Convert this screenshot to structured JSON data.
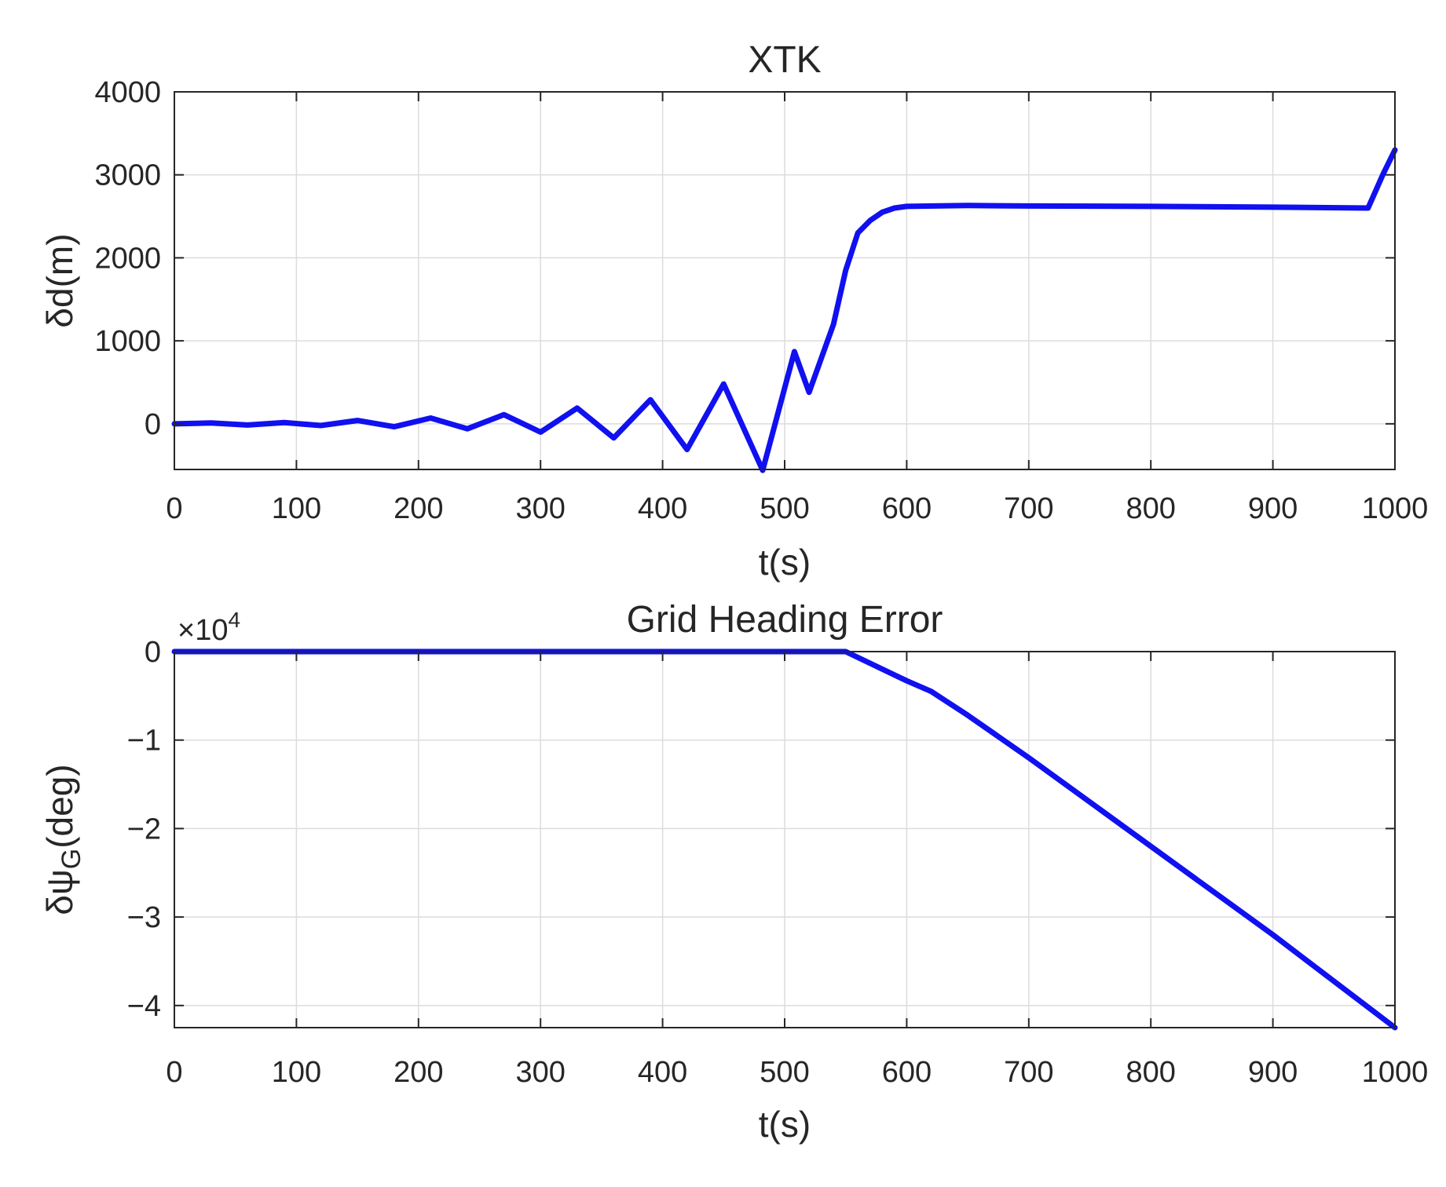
{
  "chart_data": [
    {
      "type": "line",
      "title": "XTK",
      "xlabel": "t(s)",
      "ylabel": "δd(m)",
      "xlim": [
        0,
        1000
      ],
      "ylim": [
        -550,
        4000
      ],
      "xticks": [
        0,
        100,
        200,
        300,
        400,
        500,
        600,
        700,
        800,
        900,
        1000
      ],
      "xtick_labels": [
        "0",
        "100",
        "200",
        "300",
        "400",
        "500",
        "600",
        "700",
        "800",
        "900",
        "1000"
      ],
      "yticks": [
        0,
        1000,
        2000,
        3000,
        4000
      ],
      "ytick_labels": [
        "0",
        "1000",
        "2000",
        "3000",
        "4000"
      ],
      "grid": true,
      "color": "#1010f0",
      "series": [
        {
          "x": [
            0,
            30,
            60,
            90,
            120,
            150,
            180,
            210,
            240,
            270,
            300,
            330,
            360,
            390,
            420,
            450,
            482,
            508,
            520,
            540,
            550,
            560,
            570,
            580,
            590,
            600,
            650,
            700,
            800,
            900,
            978,
            990,
            1000
          ],
          "y": [
            0,
            10,
            -15,
            15,
            -20,
            40,
            -35,
            70,
            -60,
            110,
            -100,
            190,
            -170,
            290,
            -310,
            480,
            -560,
            870,
            380,
            1200,
            1850,
            2300,
            2450,
            2550,
            2600,
            2620,
            2630,
            2625,
            2620,
            2610,
            2600,
            3000,
            3300
          ]
        }
      ]
    },
    {
      "type": "line",
      "title": "Grid Heading Error",
      "xlabel": "t(s)",
      "ylabel": "δψG(deg)",
      "ylabel_main": "δψ",
      "ylabel_sub": "G",
      "ylabel_tail": "(deg)",
      "y_multiplier": "×10",
      "y_multiplier_exp": "4",
      "xlim": [
        0,
        1000
      ],
      "ylim": [
        -4.25,
        0
      ],
      "xticks": [
        0,
        100,
        200,
        300,
        400,
        500,
        600,
        700,
        800,
        900,
        1000
      ],
      "xtick_labels": [
        "0",
        "100",
        "200",
        "300",
        "400",
        "500",
        "600",
        "700",
        "800",
        "900",
        "1000"
      ],
      "yticks": [
        0,
        -1,
        -2,
        -3,
        -4
      ],
      "ytick_labels": [
        "0",
        "−1",
        "−2",
        "−3",
        "−4"
      ],
      "grid": true,
      "color": "#1010f0",
      "series": [
        {
          "x": [
            0,
            500,
            550,
            600,
            620,
            650,
            700,
            800,
            900,
            1000
          ],
          "y": [
            0,
            0,
            0,
            -0.33,
            -0.45,
            -0.72,
            -1.2,
            -2.2,
            -3.2,
            -4.25
          ]
        }
      ]
    }
  ]
}
